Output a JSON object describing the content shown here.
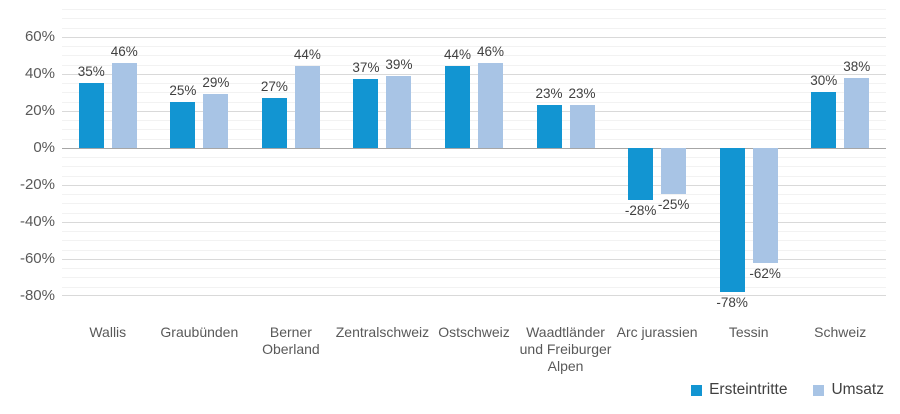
{
  "chart_data": {
    "type": "bar",
    "categories": [
      "Wallis",
      "Graubünden",
      "Berner Oberland",
      "Zentralschweiz",
      "Ostschweiz",
      "Waadtländer und Freiburger Alpen",
      "Arc jurassien",
      "Tessin",
      "Schweiz"
    ],
    "category_lines": [
      [
        "Wallis"
      ],
      [
        "Graubünden"
      ],
      [
        "Berner",
        "Oberland"
      ],
      [
        "Zentralschweiz"
      ],
      [
        "Ostschweiz"
      ],
      [
        "Waadtländer",
        "und Freiburger",
        "Alpen"
      ],
      [
        "Arc jurassien"
      ],
      [
        "Tessin"
      ],
      [
        "Schweiz"
      ]
    ],
    "series": [
      {
        "name": "Ersteintritte",
        "color": "#1295d2",
        "values": [
          35,
          25,
          27,
          37,
          44,
          23,
          -28,
          -78,
          30
        ]
      },
      {
        "name": "Umsatz",
        "color": "#a8c4e5",
        "values": [
          46,
          29,
          44,
          39,
          46,
          23,
          -25,
          -62,
          38
        ]
      }
    ],
    "value_suffix": "%",
    "data_labels": true,
    "yticks": [
      60,
      40,
      20,
      0,
      -20,
      -40,
      -60,
      -80
    ],
    "ytick_labels": [
      "60%",
      "40%",
      "20%",
      "0%",
      "-20%",
      "-40%",
      "-60%",
      "-80%"
    ],
    "ylim": [
      -80,
      75
    ],
    "major_unit": 20,
    "minor_unit": 5,
    "grid": true,
    "legend_position": "bottom-right",
    "title": "",
    "xlabel": "",
    "ylabel": ""
  },
  "legend": {
    "items": [
      {
        "label": "Ersteintritte",
        "color": "#1295d2"
      },
      {
        "label": "Umsatz",
        "color": "#a8c4e5"
      }
    ]
  },
  "colors": {
    "series_dark": "#1295d2",
    "series_light": "#a8c4e5",
    "gridline_minor": "#f2f2f2",
    "gridline_major": "#d9d9d9",
    "zero_line": "#a6a6a6",
    "axis_text": "#595959",
    "label_text": "#404040",
    "background": "#ffffff"
  }
}
